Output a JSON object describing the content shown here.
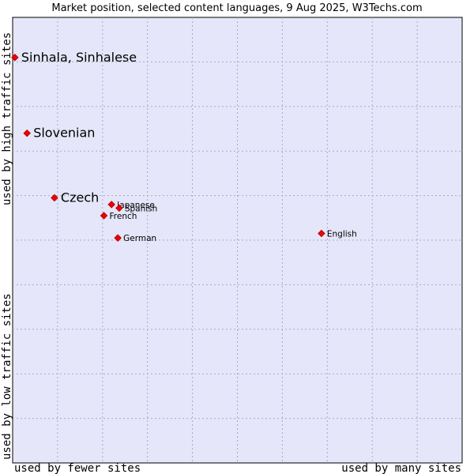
{
  "chart_data": {
    "type": "scatter",
    "title": "Market position, selected content languages, 9 Aug 2025, W3Techs.com",
    "axes": {
      "x_low_label": "used by fewer sites",
      "x_high_label": "used by many sites",
      "y_low_label": "used by low traffic sites",
      "y_high_label": "used by high traffic sites"
    },
    "grid": true,
    "xlim": [
      0,
      10
    ],
    "ylim": [
      0,
      10
    ],
    "points": [
      {
        "label": "Sinhala, Sinhalese",
        "x": 0.05,
        "y": 9.1,
        "size": "large"
      },
      {
        "label": "Slovenian",
        "x": 0.32,
        "y": 7.4,
        "size": "large"
      },
      {
        "label": "Czech",
        "x": 0.93,
        "y": 5.95,
        "size": "large"
      },
      {
        "label": "Japanese",
        "x": 2.2,
        "y": 5.8,
        "size": "small"
      },
      {
        "label": "Spanish",
        "x": 2.37,
        "y": 5.72,
        "size": "small"
      },
      {
        "label": "French",
        "x": 2.03,
        "y": 5.55,
        "size": "small"
      },
      {
        "label": "German",
        "x": 2.34,
        "y": 5.05,
        "size": "small"
      },
      {
        "label": "English",
        "x": 6.87,
        "y": 5.15,
        "size": "small"
      }
    ]
  },
  "colors": {
    "plot_background": "#e6e6fa",
    "grid": "#a9a9c8",
    "frame": "#000000",
    "point": "#ee0000"
  }
}
